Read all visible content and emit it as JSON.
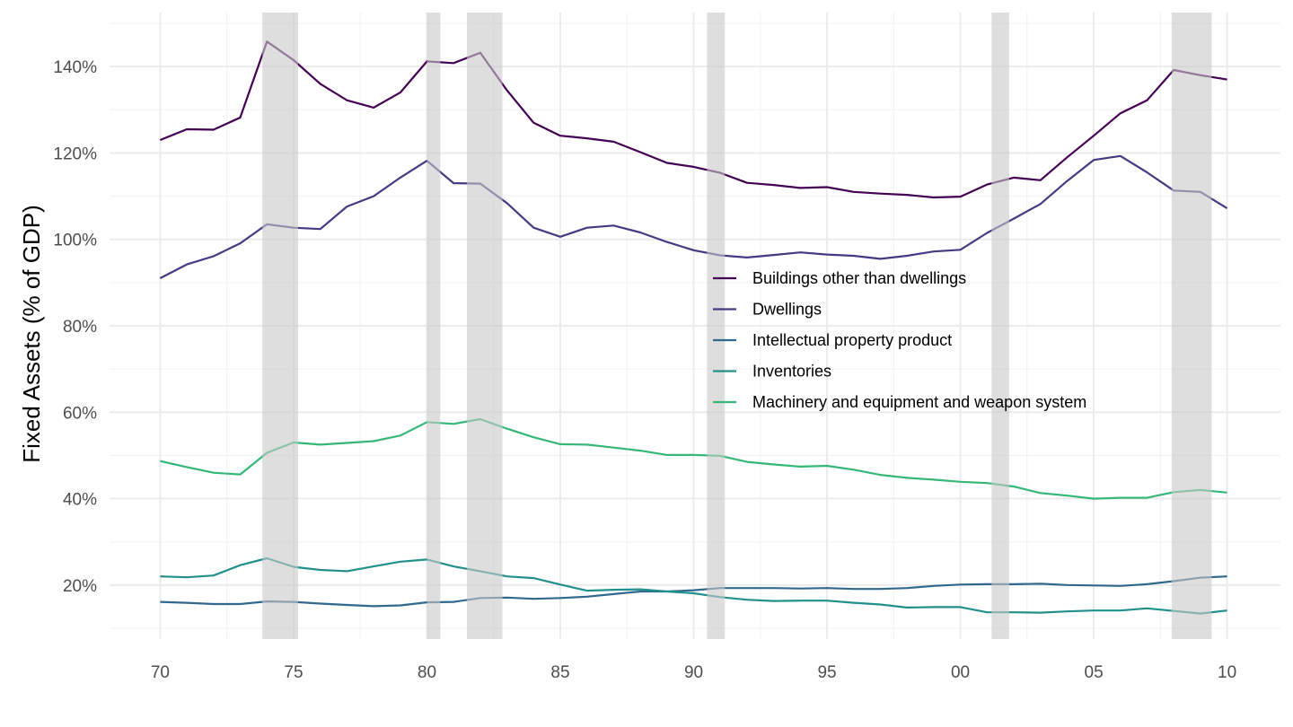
{
  "chart_data": {
    "type": "line",
    "title": "",
    "xlabel": "",
    "ylabel": "Fixed Assets (% of GDP)",
    "x": [
      1970,
      1971,
      1972,
      1973,
      1974,
      1975,
      1976,
      1977,
      1978,
      1979,
      1980,
      1981,
      1982,
      1983,
      1984,
      1985,
      1986,
      1987,
      1988,
      1989,
      1990,
      1991,
      1992,
      1993,
      1994,
      1995,
      1996,
      1997,
      1998,
      1999,
      2000,
      2001,
      2002,
      2003,
      2004,
      2005,
      2006,
      2007,
      2008,
      2009,
      2010
    ],
    "xlim": [
      1968.1,
      2012.0
    ],
    "ylim": [
      7.5,
      152.5
    ],
    "x_ticks": [
      1970,
      1975,
      1980,
      1985,
      1990,
      1995,
      2000,
      2005,
      2010
    ],
    "x_tick_labels": [
      "70",
      "75",
      "80",
      "85",
      "90",
      "95",
      "00",
      "05",
      "10"
    ],
    "y_ticks": [
      20,
      40,
      60,
      80,
      100,
      120,
      140
    ],
    "y_tick_labels": [
      "20%",
      "40%",
      "60%",
      "80%",
      "100%",
      "120%",
      "140%"
    ],
    "grid": true,
    "legend_position": "right-center",
    "recessions": [
      {
        "start": 1973.83,
        "end": 1975.17
      },
      {
        "start": 1980.0,
        "end": 1980.5
      },
      {
        "start": 1981.5,
        "end": 1982.83
      },
      {
        "start": 1990.5,
        "end": 1991.17
      },
      {
        "start": 2001.17,
        "end": 2001.83
      },
      {
        "start": 2007.92,
        "end": 2009.42
      }
    ],
    "series": [
      {
        "name": "Buildings other than dwellings",
        "color": "#440154",
        "values": [
          123.0,
          125.5,
          125.4,
          128.2,
          145.8,
          141.5,
          136.0,
          132.2,
          130.5,
          134.0,
          141.2,
          140.8,
          143.2,
          134.5,
          127.0,
          124.0,
          123.4,
          122.6,
          120.2,
          117.7,
          116.8,
          115.4,
          113.1,
          112.6,
          111.9,
          112.1,
          111.0,
          110.6,
          110.3,
          109.7,
          109.9,
          112.7,
          114.3,
          113.7,
          119.0,
          124.0,
          129.2,
          132.2,
          139.2,
          138.0,
          137.0
        ]
      },
      {
        "name": "Dwellings",
        "color": "#443a83",
        "values": [
          91.0,
          94.2,
          96.1,
          99.1,
          103.5,
          102.7,
          102.4,
          107.6,
          110.0,
          114.3,
          118.2,
          113.0,
          112.9,
          108.4,
          102.7,
          100.6,
          102.7,
          103.2,
          101.6,
          99.4,
          97.5,
          96.3,
          95.8,
          96.4,
          97.0,
          96.5,
          96.2,
          95.5,
          96.2,
          97.2,
          97.6,
          101.5,
          104.8,
          108.2,
          113.5,
          118.4,
          119.3,
          115.5,
          111.3,
          111.0,
          107.2
        ]
      },
      {
        "name": "Intellectual property product",
        "color": "#31688e",
        "values": [
          16.1,
          15.9,
          15.6,
          15.6,
          16.2,
          16.1,
          15.7,
          15.4,
          15.1,
          15.3,
          16.0,
          16.1,
          17.0,
          17.1,
          16.8,
          17.0,
          17.3,
          17.9,
          18.5,
          18.5,
          18.8,
          19.3,
          19.3,
          19.3,
          19.2,
          19.3,
          19.1,
          19.1,
          19.3,
          19.8,
          20.1,
          20.2,
          20.2,
          20.3,
          20.0,
          19.9,
          19.8,
          20.2,
          20.9,
          21.7,
          22.0
        ]
      },
      {
        "name": "Inventories",
        "color": "#21908d",
        "values": [
          22.0,
          21.8,
          22.2,
          24.6,
          26.2,
          24.2,
          23.5,
          23.2,
          24.3,
          25.4,
          25.9,
          24.3,
          23.2,
          22.0,
          21.6,
          20.1,
          18.7,
          18.9,
          19.0,
          18.5,
          18.1,
          17.2,
          16.6,
          16.3,
          16.4,
          16.4,
          15.9,
          15.5,
          14.8,
          14.9,
          14.9,
          13.7,
          13.7,
          13.6,
          13.9,
          14.1,
          14.1,
          14.6,
          14.0,
          13.4,
          14.1
        ]
      },
      {
        "name": "Machinery and equipment and weapon system",
        "color": "#35b779",
        "values": [
          48.7,
          47.3,
          46.0,
          45.6,
          50.6,
          53.0,
          52.5,
          52.9,
          53.3,
          54.6,
          57.7,
          57.3,
          58.4,
          56.2,
          54.2,
          52.6,
          52.5,
          51.8,
          51.1,
          50.1,
          50.1,
          49.9,
          48.5,
          47.9,
          47.4,
          47.6,
          46.7,
          45.5,
          44.8,
          44.4,
          43.9,
          43.6,
          42.8,
          41.3,
          40.7,
          40.0,
          40.2,
          40.2,
          41.5,
          42.0,
          41.4
        ]
      }
    ]
  }
}
